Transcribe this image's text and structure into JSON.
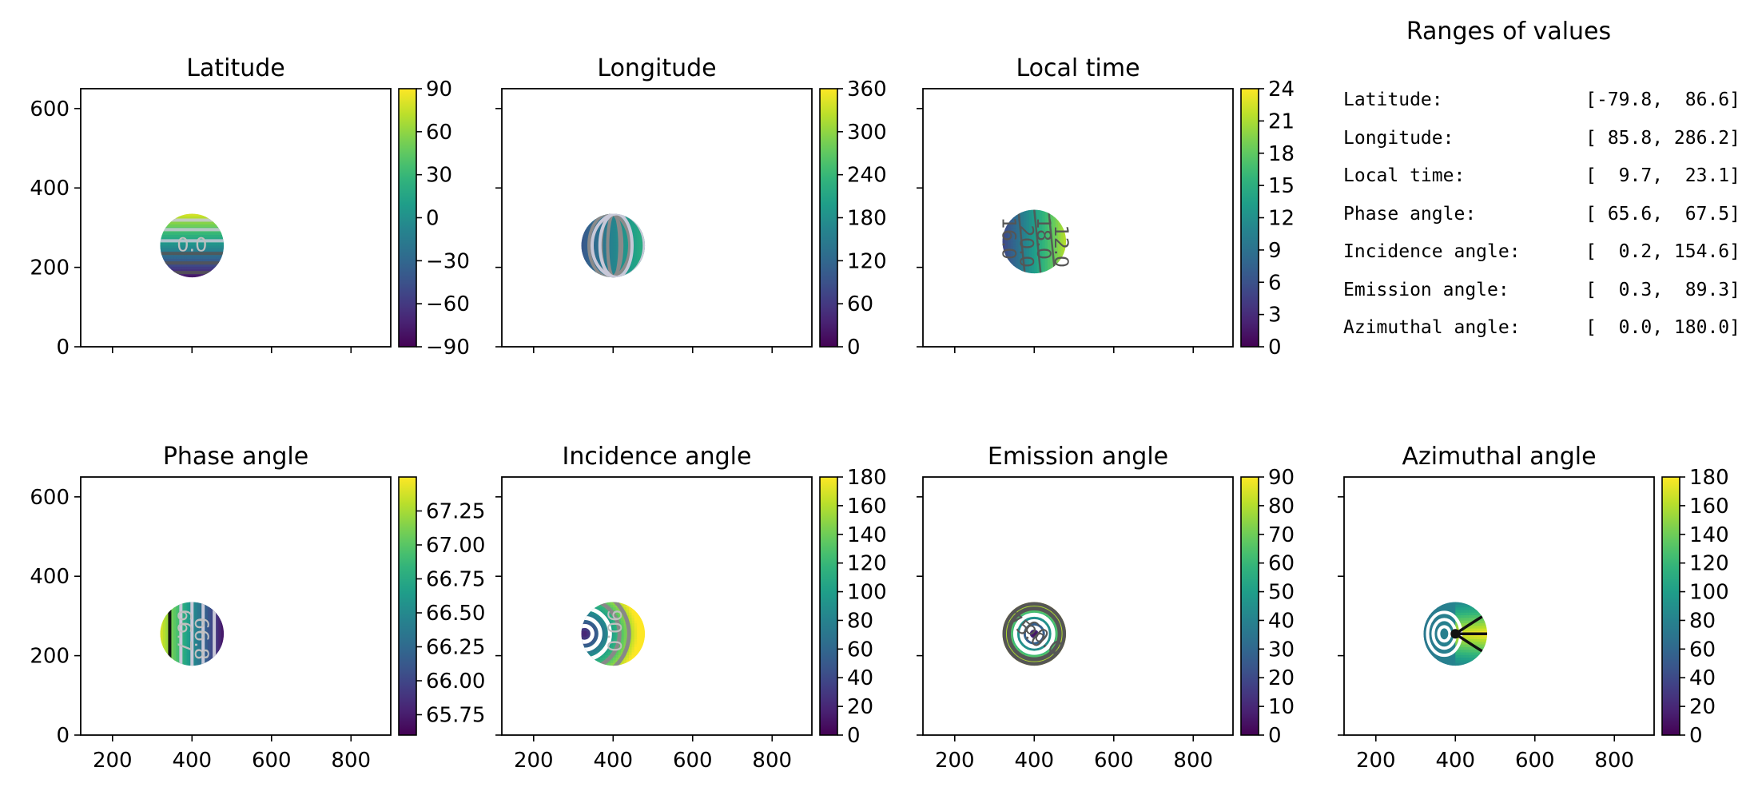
{
  "chart_data": [
    {
      "type": "heatmap",
      "title": "Latitude",
      "xlim": [
        120,
        900
      ],
      "ylim": [
        0,
        650
      ],
      "xticks": [
        200,
        400,
        600,
        800
      ],
      "yticks": [
        0,
        200,
        400,
        600
      ],
      "show_xticklabels": false,
      "show_yticklabels": true,
      "disk": {
        "center": [
          400,
          255
        ],
        "radius": 80
      },
      "pattern": "latitude-bands",
      "colorbar": {
        "min": -90,
        "max": 90,
        "ticks": [
          90,
          60,
          30,
          0,
          -30,
          -60,
          -90
        ],
        "tick_labels": [
          "90",
          "60",
          "30",
          "0",
          "−30",
          "−60",
          "−90"
        ]
      },
      "contour_labels": [
        "0.0"
      ]
    },
    {
      "type": "heatmap",
      "title": "Longitude",
      "xlim": [
        120,
        900
      ],
      "ylim": [
        0,
        650
      ],
      "xticks": [
        200,
        400,
        600,
        800
      ],
      "yticks": [
        0,
        200,
        400,
        600
      ],
      "show_xticklabels": false,
      "show_yticklabels": false,
      "disk": {
        "center": [
          400,
          255
        ],
        "radius": 80
      },
      "pattern": "longitude-meridians",
      "colorbar": {
        "min": 0,
        "max": 360,
        "ticks": [
          360,
          300,
          240,
          180,
          120,
          60,
          0
        ],
        "tick_labels": [
          "360",
          "300",
          "240",
          "180",
          "120",
          "60",
          "0"
        ]
      },
      "contour_labels": []
    },
    {
      "type": "heatmap",
      "title": "Local time",
      "xlim": [
        120,
        900
      ],
      "ylim": [
        0,
        650
      ],
      "xticks": [
        200,
        400,
        600,
        800
      ],
      "yticks": [
        0,
        200,
        400,
        600
      ],
      "show_xticklabels": false,
      "show_yticklabels": false,
      "disk": {
        "center": [
          400,
          265
        ],
        "radius": 80
      },
      "pattern": "local-time",
      "colorbar": {
        "min": 0,
        "max": 24,
        "ticks": [
          24,
          21,
          18,
          15,
          12,
          9,
          6,
          3,
          0
        ],
        "tick_labels": [
          "24",
          "21",
          "18",
          "15",
          "12",
          "9",
          "6",
          "3",
          "0"
        ]
      },
      "contour_labels": [
        "16.0",
        "20.0",
        "18.0",
        "12.0"
      ]
    },
    {
      "type": "heatmap",
      "title": "Phase angle",
      "xlim": [
        120,
        900
      ],
      "ylim": [
        0,
        650
      ],
      "xticks": [
        200,
        400,
        600,
        800
      ],
      "yticks": [
        0,
        200,
        400,
        600
      ],
      "show_xticklabels": true,
      "show_yticklabels": true,
      "disk": {
        "center": [
          400,
          255
        ],
        "radius": 80
      },
      "pattern": "phase-angle",
      "colorbar": {
        "min": 65.6,
        "max": 67.5,
        "ticks": [
          67.25,
          67.0,
          66.75,
          66.5,
          66.25,
          66.0,
          65.75
        ],
        "tick_labels": [
          "67.25",
          "67.00",
          "66.75",
          "66.50",
          "66.25",
          "66.00",
          "65.75"
        ]
      },
      "contour_labels": [
        "66.7",
        "66.8"
      ]
    },
    {
      "type": "heatmap",
      "title": "Incidence angle",
      "xlim": [
        120,
        900
      ],
      "ylim": [
        0,
        650
      ],
      "xticks": [
        200,
        400,
        600,
        800
      ],
      "yticks": [
        0,
        200,
        400,
        600
      ],
      "show_xticklabels": true,
      "show_yticklabels": false,
      "disk": {
        "center": [
          400,
          255
        ],
        "radius": 80
      },
      "pattern": "incidence-angle",
      "colorbar": {
        "min": 0,
        "max": 180,
        "ticks": [
          180,
          160,
          140,
          120,
          100,
          80,
          60,
          40,
          20,
          0
        ],
        "tick_labels": [
          "180",
          "160",
          "140",
          "120",
          "100",
          "80",
          "60",
          "40",
          "20",
          "0"
        ]
      },
      "contour_labels": [
        "90.0"
      ]
    },
    {
      "type": "heatmap",
      "title": "Emission angle",
      "xlim": [
        120,
        900
      ],
      "ylim": [
        0,
        650
      ],
      "xticks": [
        200,
        400,
        600,
        800
      ],
      "yticks": [
        0,
        200,
        400,
        600
      ],
      "show_xticklabels": true,
      "show_yticklabels": false,
      "disk": {
        "center": [
          400,
          255
        ],
        "radius": 80
      },
      "pattern": "emission-angle",
      "colorbar": {
        "min": 0,
        "max": 90,
        "ticks": [
          90,
          80,
          70,
          60,
          50,
          40,
          30,
          20,
          10,
          0
        ],
        "tick_labels": [
          "90",
          "80",
          "70",
          "60",
          "50",
          "40",
          "30",
          "20",
          "10",
          "0"
        ]
      },
      "contour_labels": [
        "75.0",
        "60.0"
      ]
    },
    {
      "type": "heatmap",
      "title": "Azimuthal angle",
      "xlim": [
        120,
        900
      ],
      "ylim": [
        0,
        650
      ],
      "xticks": [
        200,
        400,
        600,
        800
      ],
      "yticks": [
        0,
        200,
        400,
        600
      ],
      "show_xticklabels": true,
      "show_yticklabels": false,
      "disk": {
        "center": [
          400,
          255
        ],
        "radius": 80
      },
      "pattern": "azimuthal-angle",
      "colorbar": {
        "min": 0,
        "max": 180,
        "ticks": [
          180,
          160,
          140,
          120,
          100,
          80,
          60,
          40,
          20,
          0
        ],
        "tick_labels": [
          "180",
          "160",
          "140",
          "120",
          "100",
          "80",
          "60",
          "40",
          "20",
          "0"
        ]
      },
      "contour_labels": []
    },
    {
      "type": "table",
      "title": "Ranges of values",
      "rows": [
        {
          "label": "Latitude:",
          "range": "[-79.8,  86.6]"
        },
        {
          "label": "Longitude:",
          "range": "[ 85.8, 286.2]"
        },
        {
          "label": "Local time:",
          "range": "[  9.7,  23.1]"
        },
        {
          "label": "Phase angle:",
          "range": "[ 65.6,  67.5]"
        },
        {
          "label": "Incidence angle:",
          "range": "[  0.2, 154.6]"
        },
        {
          "label": "Emission angle:",
          "range": "[  0.3,  89.3]"
        },
        {
          "label": "Azimuthal angle:",
          "range": "[  0.0, 180.0]"
        }
      ]
    }
  ],
  "colors": {
    "colormap": "viridis",
    "contour_light": "#c8c8d8",
    "contour_dark": "#555555",
    "axes": "#000000"
  }
}
